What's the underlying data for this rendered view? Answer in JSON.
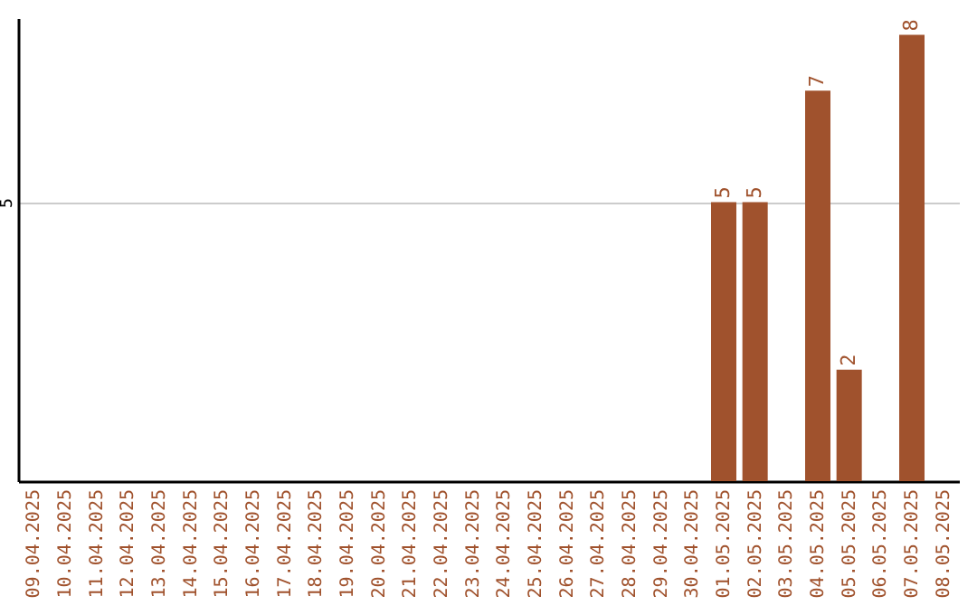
{
  "chart_data": {
    "type": "bar",
    "categories": [
      "09.04.2025",
      "10.04.2025",
      "11.04.2025",
      "12.04.2025",
      "13.04.2025",
      "14.04.2025",
      "15.04.2025",
      "16.04.2025",
      "17.04.2025",
      "18.04.2025",
      "19.04.2025",
      "20.04.2025",
      "21.04.2025",
      "22.04.2025",
      "23.04.2025",
      "24.04.2025",
      "25.04.2025",
      "26.04.2025",
      "27.04.2025",
      "28.04.2025",
      "29.04.2025",
      "30.04.2025",
      "01.05.2025",
      "02.05.2025",
      "03.05.2025",
      "04.05.2025",
      "05.05.2025",
      "06.05.2025",
      "07.05.2025",
      "08.05.2025"
    ],
    "values": [
      null,
      null,
      null,
      null,
      null,
      null,
      null,
      null,
      null,
      null,
      null,
      null,
      null,
      null,
      null,
      null,
      null,
      null,
      null,
      null,
      null,
      null,
      5,
      5,
      null,
      7,
      2,
      null,
      8,
      null
    ],
    "color": "#a0522d",
    "ylim": [
      0,
      8.3
    ],
    "yticks": [
      5
    ],
    "grid": "y",
    "data_labels": true
  }
}
